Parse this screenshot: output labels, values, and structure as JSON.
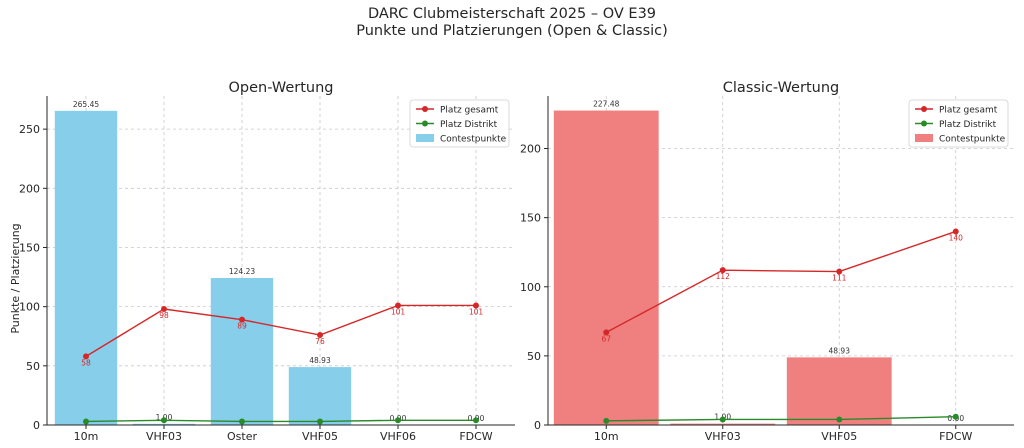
{
  "suptitle": "DARC Clubmeisterschaft 2025 – OV E39",
  "subtitle": "Punkte und Platzierungen (Open & Classic)",
  "chart_data": [
    {
      "type": "bar",
      "title": "Open-Wertung",
      "ylabel": "Punkte / Platzierung",
      "xlabel": "",
      "categories": [
        "10m",
        "VHF03",
        "Oster",
        "VHF05",
        "VHF06",
        "FDCW"
      ],
      "ylim": [
        0,
        278
      ],
      "yticks": [
        0,
        50,
        100,
        150,
        200,
        250
      ],
      "grid": true,
      "legend_position": "top-right",
      "bar_color": "#87ceeb",
      "series": [
        {
          "name": "Contestpunkte",
          "kind": "bar",
          "color": "#87ceeb",
          "values": [
            265.45,
            1.0,
            124.23,
            48.93,
            0.0,
            0.0
          ],
          "labels": [
            "265.45",
            "1.00",
            "124.23",
            "48.93",
            "0.00",
            "0.00"
          ]
        },
        {
          "name": "Platz gesamt",
          "kind": "line",
          "color": "#d62728",
          "values": [
            58,
            98,
            89,
            76,
            101,
            101
          ],
          "labels": [
            "58",
            "98",
            "89",
            "76",
            "101",
            "101"
          ]
        },
        {
          "name": "Platz Distrikt",
          "kind": "line",
          "color": "#2a8a2a",
          "values": [
            3,
            4,
            3,
            3,
            4,
            4
          ]
        }
      ]
    },
    {
      "type": "bar",
      "title": "Classic-Wertung",
      "ylabel": "",
      "xlabel": "",
      "categories": [
        "10m",
        "VHF03",
        "VHF05",
        "FDCW"
      ],
      "ylim": [
        0,
        238
      ],
      "yticks": [
        0,
        50,
        100,
        150,
        200
      ],
      "grid": true,
      "legend_position": "top-right",
      "bar_color": "#f08080",
      "series": [
        {
          "name": "Contestpunkte",
          "kind": "bar",
          "color": "#f08080",
          "values": [
            227.48,
            1.0,
            48.93,
            0.0
          ],
          "labels": [
            "227.48",
            "1.00",
            "48.93",
            "0.00"
          ]
        },
        {
          "name": "Platz gesamt",
          "kind": "line",
          "color": "#d62728",
          "values": [
            67,
            112,
            111,
            140
          ],
          "labels": [
            "67",
            "112",
            "111",
            "140"
          ]
        },
        {
          "name": "Platz Distrikt",
          "kind": "line",
          "color": "#2a8a2a",
          "values": [
            3,
            4,
            4,
            6
          ]
        }
      ]
    }
  ]
}
